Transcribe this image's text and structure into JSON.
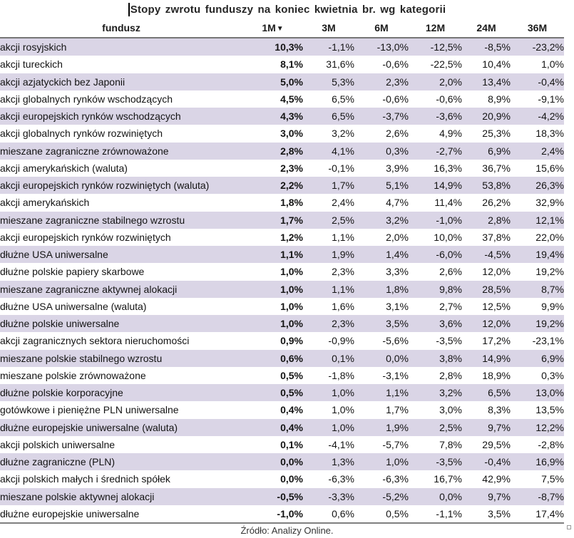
{
  "title": "Stopy zwrotu funduszy na koniec kwietnia br. wg kategorii",
  "footer": {
    "source": "Źródło: Analizy Online."
  },
  "table": {
    "columns": [
      "fundusz",
      "1M",
      "3M",
      "6M",
      "12M",
      "24M",
      "36M"
    ],
    "sort_indicator": "▼",
    "sorted_column": "1M",
    "stripe_color": "#dad5e6",
    "rows": [
      {
        "name": "akcji rosyjskich",
        "values": [
          "10,3%",
          "-1,1%",
          "-13,0%",
          "-12,5%",
          "-8,5%",
          "-23,2%"
        ]
      },
      {
        "name": "akcji tureckich",
        "values": [
          "8,1%",
          "31,6%",
          "-0,6%",
          "-22,5%",
          "10,4%",
          "1,0%"
        ]
      },
      {
        "name": "akcji azjatyckich bez Japonii",
        "values": [
          "5,0%",
          "5,3%",
          "2,3%",
          "2,0%",
          "13,4%",
          "-0,4%"
        ]
      },
      {
        "name": "akcji globalnych rynków wschodzących",
        "values": [
          "4,5%",
          "6,5%",
          "-0,6%",
          "-0,6%",
          "8,9%",
          "-9,1%"
        ]
      },
      {
        "name": "akcji europejskich rynków wschodzących",
        "values": [
          "4,3%",
          "6,5%",
          "-3,7%",
          "-3,6%",
          "20,9%",
          "-4,2%"
        ]
      },
      {
        "name": "akcji globalnych rynków rozwiniętych",
        "values": [
          "3,0%",
          "3,2%",
          "2,6%",
          "4,9%",
          "25,3%",
          "18,3%"
        ]
      },
      {
        "name": "mieszane zagraniczne zrównoważone",
        "values": [
          "2,8%",
          "4,1%",
          "0,3%",
          "-2,7%",
          "6,9%",
          "2,4%"
        ]
      },
      {
        "name": "akcji amerykańskich (waluta)",
        "values": [
          "2,3%",
          "-0,1%",
          "3,9%",
          "16,3%",
          "36,7%",
          "15,6%"
        ]
      },
      {
        "name": "akcji europejskich rynków rozwiniętych (waluta)",
        "values": [
          "2,2%",
          "1,7%",
          "5,1%",
          "14,9%",
          "53,8%",
          "26,3%"
        ]
      },
      {
        "name": "akcji amerykańskich",
        "values": [
          "1,8%",
          "2,4%",
          "4,7%",
          "11,4%",
          "26,2%",
          "32,9%"
        ]
      },
      {
        "name": "mieszane zagraniczne stabilnego wzrostu",
        "values": [
          "1,7%",
          "2,5%",
          "3,2%",
          "-1,0%",
          "2,8%",
          "12,1%"
        ]
      },
      {
        "name": "akcji europejskich rynków rozwiniętych",
        "values": [
          "1,2%",
          "1,1%",
          "2,0%",
          "10,0%",
          "37,8%",
          "22,0%"
        ]
      },
      {
        "name": "dłużne USA uniwersalne",
        "values": [
          "1,1%",
          "1,9%",
          "1,4%",
          "-6,0%",
          "-4,5%",
          "19,4%"
        ]
      },
      {
        "name": "dłużne polskie papiery skarbowe",
        "values": [
          "1,0%",
          "2,3%",
          "3,3%",
          "2,6%",
          "12,0%",
          "19,2%"
        ]
      },
      {
        "name": "mieszane zagraniczne aktywnej alokacji",
        "values": [
          "1,0%",
          "1,1%",
          "1,8%",
          "9,8%",
          "28,5%",
          "8,7%"
        ]
      },
      {
        "name": "dłużne USA uniwersalne (waluta)",
        "values": [
          "1,0%",
          "1,6%",
          "3,1%",
          "2,7%",
          "12,5%",
          "9,9%"
        ]
      },
      {
        "name": "dłużne polskie uniwersalne",
        "values": [
          "1,0%",
          "2,3%",
          "3,5%",
          "3,6%",
          "12,0%",
          "19,2%"
        ]
      },
      {
        "name": "akcji zagranicznych sektora nieruchomości",
        "values": [
          "0,9%",
          "-0,9%",
          "-5,6%",
          "-3,5%",
          "17,2%",
          "-23,1%"
        ]
      },
      {
        "name": "mieszane polskie stabilnego wzrostu",
        "values": [
          "0,6%",
          "0,1%",
          "0,0%",
          "3,8%",
          "14,9%",
          "6,9%"
        ]
      },
      {
        "name": "mieszane polskie zrównoważone",
        "values": [
          "0,5%",
          "-1,8%",
          "-3,1%",
          "2,8%",
          "18,9%",
          "0,3%"
        ]
      },
      {
        "name": "dłużne polskie korporacyjne",
        "values": [
          "0,5%",
          "1,0%",
          "1,1%",
          "3,2%",
          "6,5%",
          "13,0%"
        ]
      },
      {
        "name": "gotówkowe i pieniężne PLN uniwersalne",
        "values": [
          "0,4%",
          "1,0%",
          "1,7%",
          "3,0%",
          "8,3%",
          "13,5%"
        ]
      },
      {
        "name": "dłużne europejskie uniwersalne (waluta)",
        "values": [
          "0,4%",
          "1,0%",
          "1,9%",
          "2,5%",
          "9,7%",
          "12,2%"
        ]
      },
      {
        "name": "akcji polskich uniwersalne",
        "values": [
          "0,1%",
          "-4,1%",
          "-5,7%",
          "7,8%",
          "29,5%",
          "-2,8%"
        ]
      },
      {
        "name": "dłużne zagraniczne (PLN)",
        "values": [
          "0,0%",
          "1,3%",
          "1,0%",
          "-3,5%",
          "-0,4%",
          "16,9%"
        ]
      },
      {
        "name": "akcji polskich małych i średnich spółek",
        "values": [
          "0,0%",
          "-6,3%",
          "-6,3%",
          "16,7%",
          "42,9%",
          "7,5%"
        ]
      },
      {
        "name": "mieszane polskie aktywnej alokacji",
        "values": [
          "-0,5%",
          "-3,3%",
          "-5,2%",
          "0,0%",
          "9,7%",
          "-8,7%"
        ]
      },
      {
        "name": "dłużne europejskie uniwersalne",
        "values": [
          "-1,0%",
          "0,6%",
          "0,5%",
          "-1,1%",
          "3,5%",
          "17,4%"
        ]
      }
    ]
  }
}
